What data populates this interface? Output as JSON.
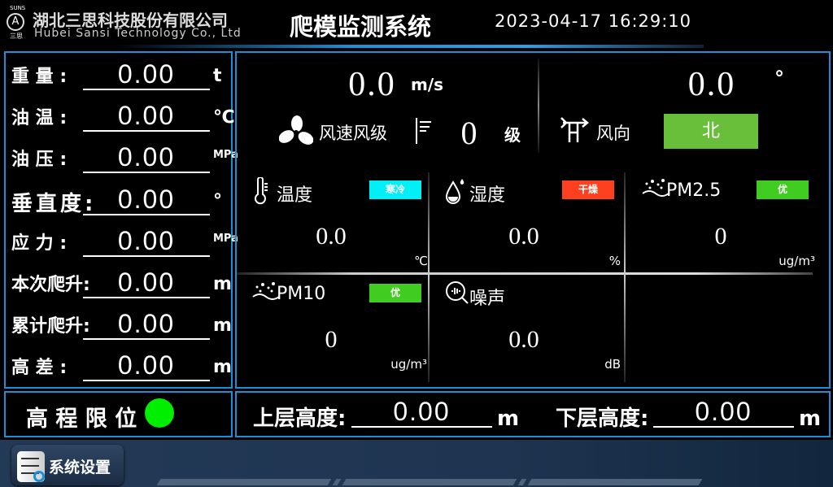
{
  "header": {
    "company_cn": "湖北三思科技股份有限公司",
    "company_en": "Hubei Sansi Technology Co., Ltd",
    "logo_top": "SUNS",
    "logo_bottom": "三思",
    "title": "爬模监测系统",
    "datetime": "2023-04-17 16:29:10"
  },
  "left_rows": [
    {
      "label": "重 量 :",
      "value": "0.00",
      "unit": "t"
    },
    {
      "label": "油 温 :",
      "value": "0.00",
      "unit": "℃"
    },
    {
      "label": "油 压 :",
      "value": "0.00",
      "unit": "MPa"
    },
    {
      "label": "垂直度:",
      "value": "0.00",
      "unit": "°"
    },
    {
      "label": "应 力 :",
      "value": "0.00",
      "unit": "MPa"
    },
    {
      "label": "本次爬升:",
      "value": "0.00",
      "unit": "m"
    },
    {
      "label": "累计爬升:",
      "value": "0.00",
      "unit": "m"
    },
    {
      "label": "高 差 :",
      "value": "0.00",
      "unit": "m"
    }
  ],
  "wind": {
    "speed": "0.0",
    "speed_unit": "m/s",
    "speed_label": "风速风级",
    "level": "0",
    "level_unit": "级",
    "direction_deg": "0.0",
    "deg_unit": "°",
    "direction_label": "风向",
    "direction": "北"
  },
  "cells": [
    {
      "title": "温度",
      "badge": "寒冷",
      "badge_color": "#00f0f5",
      "value": "0.0",
      "unit": "℃",
      "icon": "thermometer-icon"
    },
    {
      "title": "湿度",
      "badge": "干燥",
      "badge_color": "#ff4020",
      "value": "0.0",
      "unit": "%",
      "icon": "water-drop-icon"
    },
    {
      "title": "PM2.5",
      "badge": "优",
      "badge_color": "#40cc20",
      "value": "0",
      "unit": "ug/m³",
      "icon": "particles-icon"
    },
    {
      "title": "PM10",
      "badge": "优",
      "badge_color": "#40cc20",
      "value": "0",
      "unit": "ug/m³",
      "icon": "particles-icon"
    },
    {
      "title": "噪声",
      "value": "0.0",
      "unit": "dB",
      "icon": "noise-icon"
    }
  ],
  "limit": {
    "label": "高 程 限 位",
    "status_color": "#00ee00"
  },
  "heights": {
    "upper_label": "上层高度:",
    "upper_value": "0.00",
    "upper_unit": "m",
    "lower_label": "下层高度:",
    "lower_value": "0.00",
    "lower_unit": "m"
  },
  "footer": {
    "settings_label": "系统设置"
  }
}
